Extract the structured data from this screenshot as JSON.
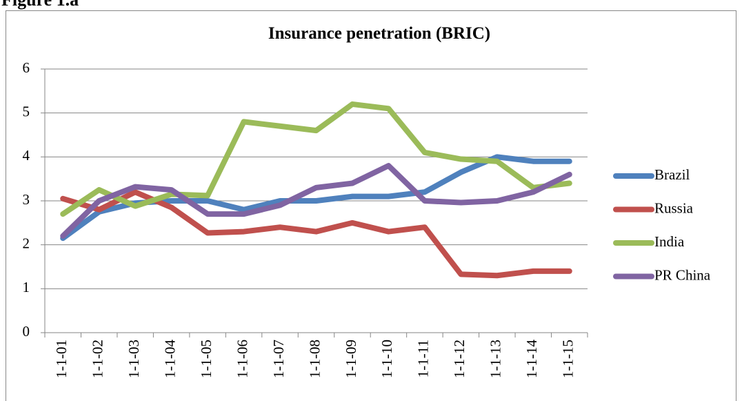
{
  "heading": "Figure 1.a",
  "chart_data": {
    "type": "line",
    "title": "Insurance penetration (BRIC)",
    "categories": [
      "1-1-01",
      "1-1-02",
      "1-1-03",
      "1-1-04",
      "1-1-05",
      "1-1-06",
      "1-1-07",
      "1-1-08",
      "1-1-09",
      "1-1-10",
      "1-1-11",
      "1-1-12",
      "1-1-13",
      "1-1-14",
      "1-1-15"
    ],
    "series": [
      {
        "name": "Brazil",
        "color": "#4f81bd",
        "values": [
          2.15,
          2.75,
          2.95,
          3.0,
          3.0,
          2.8,
          3.0,
          3.0,
          3.1,
          3.1,
          3.2,
          3.65,
          4.0,
          3.9,
          3.9
        ]
      },
      {
        "name": "Russia",
        "color": "#c0504d",
        "values": [
          3.05,
          2.8,
          3.2,
          2.85,
          2.27,
          2.3,
          2.4,
          2.3,
          2.5,
          2.3,
          2.4,
          1.33,
          1.3,
          1.4,
          1.4
        ]
      },
      {
        "name": "India",
        "color": "#9bbb59",
        "values": [
          2.7,
          3.25,
          2.88,
          3.15,
          3.12,
          4.8,
          4.7,
          4.6,
          5.2,
          5.1,
          4.1,
          3.95,
          3.9,
          3.3,
          3.4
        ]
      },
      {
        "name": "PR China",
        "color": "#8064a2",
        "values": [
          2.2,
          3.0,
          3.32,
          3.25,
          2.7,
          2.7,
          2.9,
          3.3,
          3.4,
          3.8,
          3.0,
          2.96,
          3.0,
          3.2,
          3.6
        ]
      }
    ],
    "ylim": [
      0,
      6
    ],
    "yticks": [
      0,
      1,
      2,
      3,
      4,
      5,
      6
    ],
    "grid": true,
    "legend": "right"
  }
}
